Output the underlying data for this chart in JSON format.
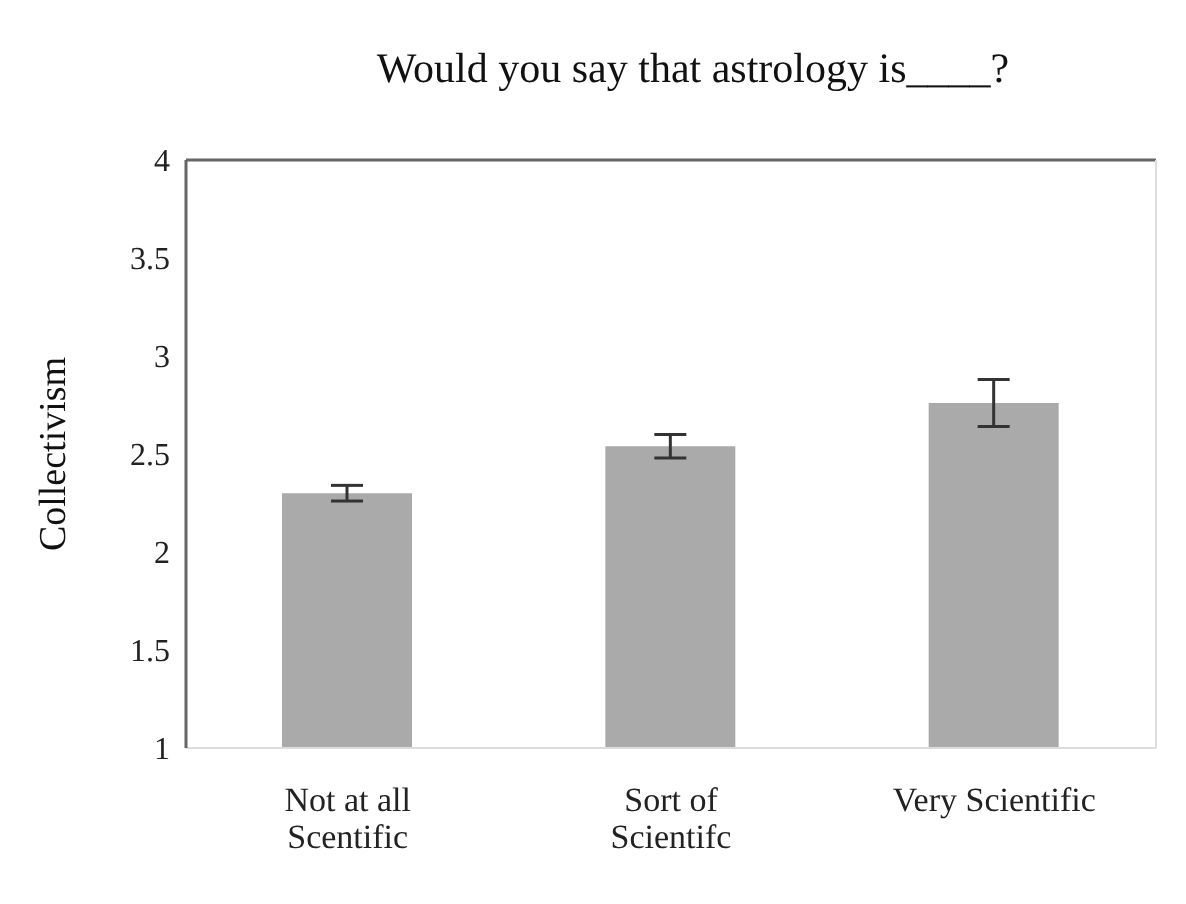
{
  "chart_data": {
    "type": "bar",
    "title": "Would you say that astrology is____?",
    "ylabel": "Collectivism",
    "categories": [
      "Not at all Scentific",
      "Sort of Scientifc",
      "Very Scientific"
    ],
    "values": [
      2.3,
      2.54,
      2.76
    ],
    "errors": [
      0.04,
      0.06,
      0.12
    ],
    "color": "#aaaaaa",
    "ylim": [
      1,
      4
    ],
    "yticks": [
      1,
      1.5,
      2,
      2.5,
      3,
      3.5,
      4
    ],
    "grid": false,
    "legend": false
  }
}
